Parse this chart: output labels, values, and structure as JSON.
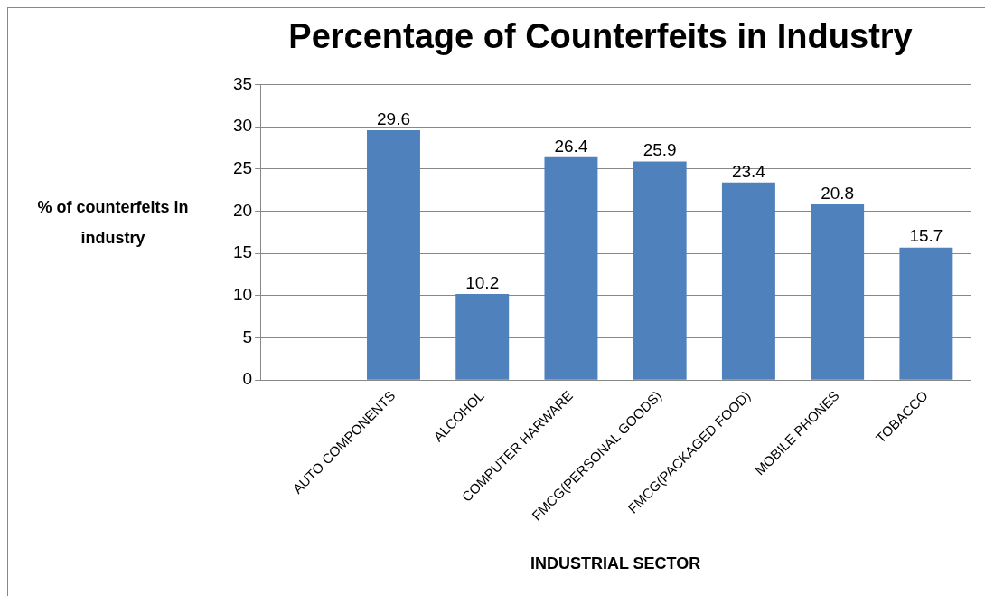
{
  "chart_data": {
    "type": "bar",
    "title": "Percentage of Counterfeits in Industry",
    "xlabel": "INDUSTRIAL SECTOR",
    "ylabel": "% of counterfeits in industry",
    "categories": [
      null,
      "AUTO COMPONENTS",
      "ALCOHOL",
      "COMPUTER HARWARE",
      "FMCG(PERSONAL GOODS)",
      "FMCG(PACKAGED FOOD)",
      "MOBILE PHONES",
      "TOBACCO"
    ],
    "values": [
      null,
      29.6,
      10.2,
      26.4,
      25.9,
      23.4,
      20.8,
      15.7
    ],
    "color": "#4f81bd",
    "ylim": [
      0,
      35
    ],
    "yticks": [
      0,
      5,
      10,
      15,
      20,
      25,
      30,
      35
    ],
    "grid": "y",
    "data_labels": true,
    "legend": false
  }
}
